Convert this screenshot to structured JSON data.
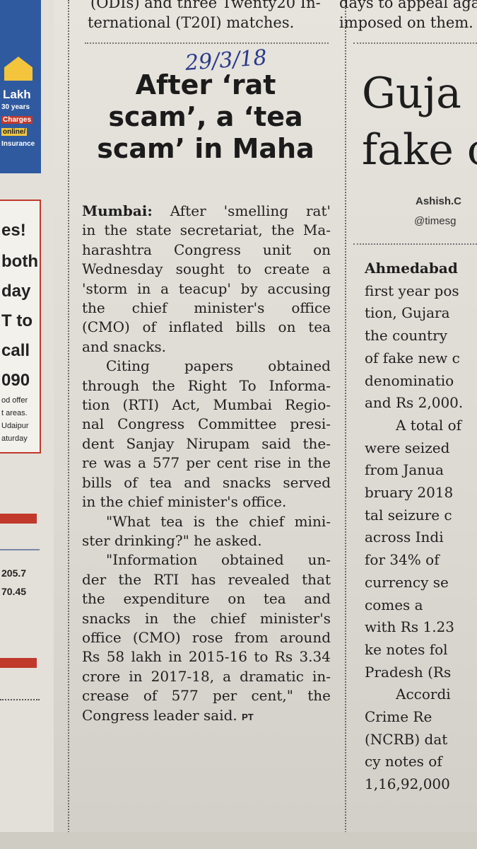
{
  "top_strip": {
    "left": [
      "(ODIs) and three Twenty20 In-",
      "ternational (T20I) matches."
    ],
    "right": [
      "days to appeal agai",
      "imposed on them."
    ]
  },
  "left_ads": {
    "blue_ad": [
      "Lakh",
      "30 years",
      "Charges",
      "online/",
      "Insurance"
    ],
    "white_ad": [
      "es!",
      "both",
      "day",
      "T to",
      "call",
      "090"
    ],
    "white_ad_small": [
      "od offer",
      "t areas.",
      "Udaipur",
      "aturday"
    ],
    "stock_values": [
      "205.7",
      "70.45"
    ]
  },
  "handwritten_date": "29/3/18",
  "article": {
    "headline": [
      "After ‘rat",
      "scam’, a ‘tea",
      "scam’ in Maha"
    ],
    "dateline": "Mumbai:",
    "p1_lines": [
      "After 'smelling rat'",
      "in the state secretariat, the Ma-",
      "harashtra Congress unit on",
      "Wednesday sought to create a",
      "'storm in a teacup' by accusing",
      "the chief minister's office",
      "(CMO) of inflated bills on tea",
      "and snacks."
    ],
    "p2_lines": [
      "Citing papers obtained",
      "through the Right To Informa-",
      "tion (RTI) Act, Mumbai Regio-",
      "nal Congress Committee presi-",
      "dent Sanjay Nirupam said the-",
      "re was a 577 per cent rise in the",
      "bills of tea and snacks served",
      "in the chief minister's office."
    ],
    "p3_lines": [
      "\"What tea is the chief mini-",
      "ster drinking?\" he asked."
    ],
    "p4_lines": [
      "\"Information obtained un-",
      "der the RTI has revealed that",
      "the expenditure on tea and",
      "snacks in the chief minister's",
      "office (CMO) rose from around",
      "Rs 58 lakh in 2015-16 to Rs 3.34",
      "crore in 2017-18, a dramatic in-",
      "crease of 577 per cent,\" the",
      "Congress leader said."
    ],
    "credit": "PT"
  },
  "right_column": {
    "headline": [
      "Guja",
      "fake c"
    ],
    "byline": "Ashish.C",
    "handle": "@timesg",
    "lines": [
      {
        "text": "Ahmedabad",
        "bold": true,
        "indent": false
      },
      {
        "text": "first year pos",
        "bold": false,
        "indent": false
      },
      {
        "text": "tion, Gujara",
        "bold": false,
        "indent": false
      },
      {
        "text": "the country",
        "bold": false,
        "indent": false
      },
      {
        "text": "of fake new c",
        "bold": false,
        "indent": false
      },
      {
        "text": "denominatio",
        "bold": false,
        "indent": false
      },
      {
        "text": "and Rs 2,000.",
        "bold": false,
        "indent": false
      },
      {
        "text": "A total of",
        "bold": false,
        "indent": true
      },
      {
        "text": "were seized",
        "bold": false,
        "indent": false
      },
      {
        "text": "from Janua",
        "bold": false,
        "indent": false
      },
      {
        "text": "bruary 2018",
        "bold": false,
        "indent": false
      },
      {
        "text": "tal seizure c",
        "bold": false,
        "indent": false
      },
      {
        "text": "across Indi",
        "bold": false,
        "indent": false
      },
      {
        "text": "for 34% of",
        "bold": false,
        "indent": false
      },
      {
        "text": "currency se",
        "bold": false,
        "indent": false
      },
      {
        "text": "comes a",
        "bold": false,
        "indent": false
      },
      {
        "text": "with Rs 1.23",
        "bold": false,
        "indent": false
      },
      {
        "text": "ke notes fol",
        "bold": false,
        "indent": false
      },
      {
        "text": "Pradesh (Rs",
        "bold": false,
        "indent": false
      },
      {
        "text": "Accordi",
        "bold": false,
        "indent": true
      },
      {
        "text": "Crime Re",
        "bold": false,
        "indent": false
      },
      {
        "text": "(NCRB) dat",
        "bold": false,
        "indent": false
      },
      {
        "text": "cy notes of",
        "bold": false,
        "indent": false
      },
      {
        "text": "1,16,92,000",
        "bold": false,
        "indent": false
      }
    ]
  }
}
